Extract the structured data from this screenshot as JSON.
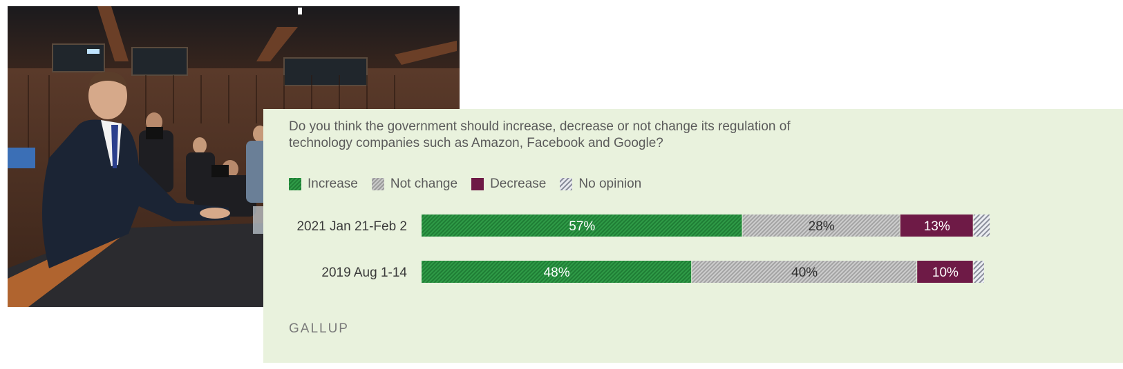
{
  "question": {
    "line1": "Do you think the government should increase, decrease or not change its regulation of",
    "line2": "technology companies such as Amazon, Facebook and Google?"
  },
  "legend": [
    {
      "label": "Increase"
    },
    {
      "label": "Not change"
    },
    {
      "label": "Decrease"
    },
    {
      "label": "No opinion"
    }
  ],
  "colors": {
    "increase": "#2a8e40",
    "not_change": "#b8b8b8",
    "decrease": "#6e1a46",
    "no_opinion": "#a8acba",
    "panel_bg": "#e9f2dd"
  },
  "brand": "GALLUP",
  "chart_data": {
    "type": "bar",
    "orientation": "horizontal",
    "stacked": true,
    "categories": [
      "2021 Jan 21-Feb 2",
      "2019 Aug 1-14"
    ],
    "series": [
      {
        "name": "Increase",
        "values": [
          57,
          48
        ],
        "labels": [
          "57%",
          "48%"
        ]
      },
      {
        "name": "Not change",
        "values": [
          28,
          40
        ],
        "labels": [
          "28%",
          "40%"
        ]
      },
      {
        "name": "Decrease",
        "values": [
          13,
          10
        ],
        "labels": [
          "13%",
          "10%"
        ]
      },
      {
        "name": "No opinion",
        "values": [
          3,
          2
        ],
        "labels": [
          "",
          ""
        ]
      }
    ],
    "xlim": [
      0,
      100
    ],
    "legend_position": "top-left"
  }
}
